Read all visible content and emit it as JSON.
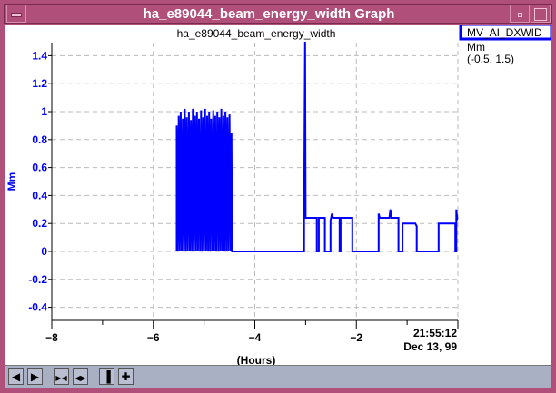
{
  "window": {
    "title": "ha_e89044_beam_energy_width Graph"
  },
  "toolbar": {
    "buttons": [
      {
        "name": "scroll-left",
        "glyph": "◀"
      },
      {
        "name": "scroll-right",
        "glyph": "▶"
      },
      {
        "name": "zoom-in-x",
        "glyph": "▶◀"
      },
      {
        "name": "zoom-out-x",
        "glyph": "◀▶"
      },
      {
        "name": "pin",
        "glyph": "▐"
      },
      {
        "name": "crosshair",
        "glyph": "✚"
      }
    ]
  },
  "legend": {
    "label": "MV_AI_DXWID",
    "units": "Mm",
    "range": "(-0.5, 1.5)"
  },
  "colors": {
    "series": "#0000ff",
    "frame": "#b04f79",
    "toolbar": "#aab0c4"
  },
  "chart_data": {
    "type": "line",
    "title": "ha_e89044_beam_energy_width",
    "xlabel": "(Hours)",
    "ylabel": "Mm",
    "xlim": [
      -8,
      0
    ],
    "ylim": [
      -0.4,
      1.5
    ],
    "x_ticks": [
      "-8",
      "-6",
      "-4",
      "-2"
    ],
    "end_time": "21:55:12",
    "end_date": "Dec 13, 99",
    "y_ticks": [
      "1.4",
      "1.2",
      "1",
      "0.8",
      "0.6",
      "0.4",
      "0.2",
      "0",
      "-0.2",
      "-0.4"
    ],
    "grid": true,
    "series": [
      {
        "points": [
          [
            -5.54,
            0
          ],
          [
            -5.54,
            0.9
          ],
          [
            -5.52,
            0
          ],
          [
            -5.5,
            0.97
          ],
          [
            -5.48,
            0
          ],
          [
            -5.46,
            1.0
          ],
          [
            -5.44,
            0
          ],
          [
            -5.42,
            0.95
          ],
          [
            -5.4,
            0
          ],
          [
            -5.38,
            1.02
          ],
          [
            -5.36,
            0
          ],
          [
            -5.34,
            0.96
          ],
          [
            -5.32,
            0
          ],
          [
            -5.3,
            1.0
          ],
          [
            -5.28,
            0
          ],
          [
            -5.26,
            0.94
          ],
          [
            -5.24,
            0
          ],
          [
            -5.22,
            1.02
          ],
          [
            -5.2,
            0
          ],
          [
            -5.18,
            0.97
          ],
          [
            -5.16,
            0
          ],
          [
            -5.14,
            1.0
          ],
          [
            -5.12,
            0
          ],
          [
            -5.1,
            0.95
          ],
          [
            -5.08,
            0
          ],
          [
            -5.06,
            1.01
          ],
          [
            -5.04,
            0
          ],
          [
            -5.02,
            0.96
          ],
          [
            -5.0,
            0
          ],
          [
            -4.98,
            1.02
          ],
          [
            -4.96,
            0
          ],
          [
            -4.94,
            0.97
          ],
          [
            -4.92,
            0
          ],
          [
            -4.9,
            1.0
          ],
          [
            -4.88,
            0
          ],
          [
            -4.86,
            0.95
          ],
          [
            -4.84,
            0
          ],
          [
            -4.82,
            1.01
          ],
          [
            -4.8,
            0
          ],
          [
            -4.78,
            0.97
          ],
          [
            -4.76,
            0
          ],
          [
            -4.74,
            1.0
          ],
          [
            -4.72,
            0
          ],
          [
            -4.7,
            0.96
          ],
          [
            -4.68,
            0
          ],
          [
            -4.66,
            1.02
          ],
          [
            -4.64,
            0
          ],
          [
            -4.62,
            0.97
          ],
          [
            -4.6,
            0
          ],
          [
            -4.58,
            1.0
          ],
          [
            -4.56,
            0
          ],
          [
            -4.54,
            0.96
          ],
          [
            -4.52,
            0
          ],
          [
            -4.5,
            0.98
          ],
          [
            -4.48,
            0
          ],
          [
            -4.46,
            0.85
          ],
          [
            -4.45,
            0
          ],
          [
            -3.03,
            0
          ],
          [
            -3.03,
            0.24
          ],
          [
            -3.01,
            1.5
          ],
          [
            -3.0,
            0.24
          ],
          [
            -2.78,
            0.24
          ],
          [
            -2.78,
            0
          ],
          [
            -2.74,
            0
          ],
          [
            -2.74,
            0.24
          ],
          [
            -2.62,
            0.24
          ],
          [
            -2.62,
            0
          ],
          [
            -2.51,
            0
          ],
          [
            -2.51,
            0.22
          ],
          [
            -2.48,
            0.27
          ],
          [
            -2.46,
            0.24
          ],
          [
            -2.33,
            0.24
          ],
          [
            -2.33,
            0
          ],
          [
            -2.31,
            0
          ],
          [
            -2.31,
            0.24
          ],
          [
            -2.08,
            0.24
          ],
          [
            -2.08,
            0
          ],
          [
            -1.56,
            0
          ],
          [
            -1.56,
            0.27
          ],
          [
            -1.54,
            0.24
          ],
          [
            -1.35,
            0.24
          ],
          [
            -1.33,
            0.3
          ],
          [
            -1.31,
            0.24
          ],
          [
            -1.17,
            0.24
          ],
          [
            -1.17,
            0
          ],
          [
            -1.09,
            0
          ],
          [
            -1.09,
            0.2
          ],
          [
            -0.84,
            0.2
          ],
          [
            -0.81,
            0.18
          ],
          [
            -0.81,
            0
          ],
          [
            -0.38,
            0
          ],
          [
            -0.38,
            0.2
          ],
          [
            -0.05,
            0.2
          ],
          [
            -0.05,
            0
          ],
          [
            -0.03,
            0
          ],
          [
            -0.03,
            0.3
          ],
          [
            -0.01,
            0.23
          ],
          [
            0,
            0.23
          ]
        ]
      }
    ]
  }
}
